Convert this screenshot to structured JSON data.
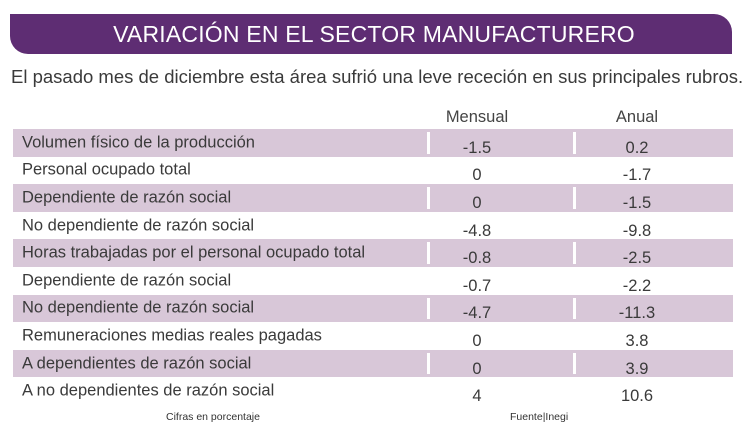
{
  "header": {
    "title": "VARIACIÓN EN EL SECTOR MANUFACTURERO",
    "subtitle": "El pasado mes de diciembre esta área sufrió una leve receción en sus principales rubros."
  },
  "colors": {
    "banner": "#5e2d73",
    "row_shade": "#d8c7d8"
  },
  "chart_data": {
    "type": "table",
    "title": "VARIACIÓN EN EL SECTOR MANUFACTURERO",
    "columns": [
      "Mensual",
      "Anual"
    ],
    "rows": [
      {
        "label": "Volumen físico de la producción",
        "mensual": "-1.5",
        "anual": "0.2"
      },
      {
        "label": "Personal ocupado total",
        "mensual": "0",
        "anual": "-1.7"
      },
      {
        "label": "Dependiente de razón social",
        "mensual": "0",
        "anual": "-1.5"
      },
      {
        "label": "No dependiente de razón social",
        "mensual": "-4.8",
        "anual": "-9.8"
      },
      {
        "label": "Horas trabajadas por el personal ocupado total",
        "mensual": "-0.8",
        "anual": "-2.5"
      },
      {
        "label": "Dependiente de razón social",
        "mensual": "-0.7",
        "anual": "-2.2"
      },
      {
        "label": "No dependiente de razón social",
        "mensual": "-4.7",
        "anual": "-11.3"
      },
      {
        "label": "Remuneraciones medias reales pagadas",
        "mensual": "0",
        "anual": "3.8"
      },
      {
        "label": "A dependientes de razón social",
        "mensual": "0",
        "anual": "3.9"
      },
      {
        "label": "A no dependientes de razón social",
        "mensual": "4",
        "anual": "10.6"
      }
    ]
  },
  "footer": {
    "note": "Cifras en porcentaje",
    "source": "Fuente|Inegi"
  }
}
